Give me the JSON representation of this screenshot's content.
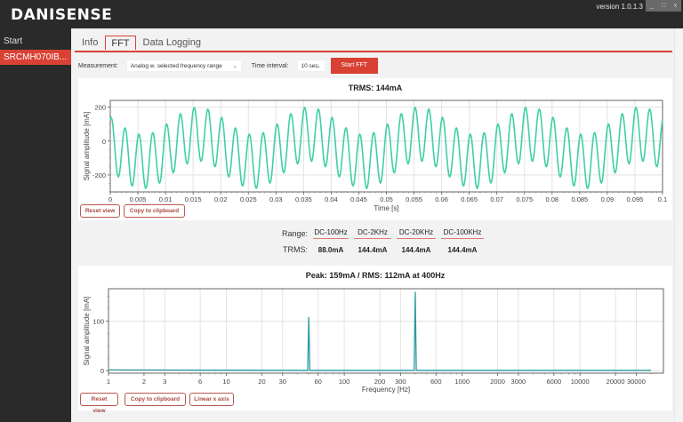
{
  "app": {
    "logo": "DANISENSE",
    "version": "version 1.0.1.3",
    "window_controls": [
      "_",
      "□",
      "x"
    ]
  },
  "sidebar": {
    "items": [
      {
        "label": "Start",
        "active": false
      },
      {
        "label": "SRCMH070IB...",
        "active": true
      }
    ]
  },
  "tabs": [
    {
      "label": "Info",
      "active": false
    },
    {
      "label": "FFT",
      "active": true
    },
    {
      "label": "Data Logging",
      "active": false
    }
  ],
  "toolbar": {
    "measurement_label": "Measurement:",
    "measurement_value": "Analog w. selected frequency range",
    "time_interval_label": "Time interval:",
    "time_interval_value": "10 sec",
    "start_button": "Start FFT"
  },
  "time_chart": {
    "title": "TRMS: 144mA",
    "reset_button": "Reset view",
    "copy_button": "Copy to clipboard"
  },
  "range_table": {
    "range_label": "Range:",
    "trms_label": "TRMS:",
    "columns": [
      {
        "range": "DC-100Hz",
        "trms": "88.0mA"
      },
      {
        "range": "DC-2KHz",
        "trms": "144.4mA"
      },
      {
        "range": "DC-20KHz",
        "trms": "144.4mA"
      },
      {
        "range": "DC-100KHz",
        "trms": "144.4mA"
      }
    ]
  },
  "fft_chart": {
    "title": "Peak: 159mA / RMS: 112mA at 400Hz",
    "reset_button": "Reset view",
    "copy_button": "Copy to clipboard",
    "linear_button": "Linear x axis"
  },
  "colors": {
    "accent": "#d94134",
    "signal": "#3fcfa6",
    "fft_line": "#2a9a9f",
    "background_dark": "#2a2a2a"
  },
  "chart_data": [
    {
      "type": "line",
      "title": "TRMS: 144mA",
      "xlabel": "Time [s]",
      "ylabel": "Signal amplitude [mA]",
      "xlim": [
        0,
        0.1
      ],
      "ylim": [
        -300,
        240
      ],
      "x_ticks": [
        "0",
        "0.005",
        "0.01",
        "0.015",
        "0.02",
        "0.025",
        "0.03",
        "0.035",
        "0.04",
        "0.045",
        "0.05",
        "0.055",
        "0.06",
        "0.065",
        "0.07",
        "0.075",
        "0.08",
        "0.085",
        "0.09",
        "0.095",
        "0.1"
      ],
      "y_ticks": [
        "200",
        "0",
        "-200"
      ],
      "grid": true,
      "description": "Sum of ~400Hz sinusoid (~112mA rms, ~159mA peak) and ~50Hz sinusoid (~108mA peak); amplitude range approx -300 to +230 mA",
      "series": [
        {
          "name": "signal",
          "components": [
            {
              "freq_hz": 400,
              "amp_ma": 159
            },
            {
              "freq_hz": 50,
              "amp_ma": 108
            }
          ]
        }
      ]
    },
    {
      "type": "line",
      "title": "Peak: 159mA / RMS: 112mA at 400Hz",
      "xlabel": "Frequency [Hz]",
      "ylabel": "Signal amplitude [mA]",
      "xscale": "log",
      "xlim": [
        1,
        50000
      ],
      "ylim": [
        -5,
        165
      ],
      "x_ticks": [
        "1",
        "2",
        "3",
        "6",
        "10",
        "20",
        "30",
        "60",
        "100",
        "200",
        "300",
        "600",
        "1000",
        "2000",
        "3000",
        "6000",
        "10000",
        "20000",
        "30000"
      ],
      "y_ticks": [
        "0",
        "100"
      ],
      "grid": true,
      "peaks": [
        {
          "freq_hz": 50,
          "amp_ma": 108
        },
        {
          "freq_hz": 400,
          "amp_ma": 159
        }
      ]
    }
  ]
}
